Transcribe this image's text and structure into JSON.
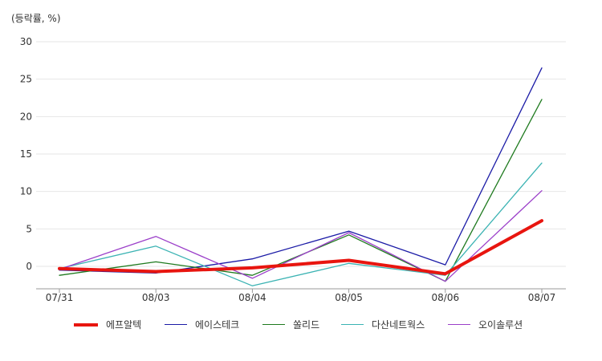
{
  "chart_data": {
    "type": "line",
    "unit_label": "(등락률, %)",
    "categories": [
      "07/31",
      "08/03",
      "08/04",
      "08/05",
      "08/06",
      "08/07"
    ],
    "ylim": [
      -3,
      30
    ],
    "yticks": [
      0,
      5,
      10,
      15,
      20,
      25,
      30
    ],
    "grid": true,
    "legend_position": "bottom",
    "series": [
      {
        "name": "에프알텍",
        "color": "#e8150f",
        "values": [
          -0.3,
          -0.7,
          -0.2,
          0.8,
          -1.0,
          6.1
        ]
      },
      {
        "name": "에이스테크",
        "color": "#1a1aa6",
        "values": [
          -0.5,
          -0.9,
          1.0,
          4.7,
          0.2,
          26.5
        ]
      },
      {
        "name": "쏠리드",
        "color": "#1e7a1e",
        "values": [
          -1.2,
          0.6,
          -1.2,
          4.2,
          -2.0,
          22.3
        ]
      },
      {
        "name": "다산네트웍스",
        "color": "#3bb3b3",
        "values": [
          -0.3,
          2.7,
          -2.6,
          0.4,
          -1.2,
          13.8
        ]
      },
      {
        "name": "오이솔루션",
        "color": "#9b3fc9",
        "values": [
          -0.4,
          4.0,
          -1.6,
          4.5,
          -2.0,
          10.1
        ]
      }
    ]
  }
}
